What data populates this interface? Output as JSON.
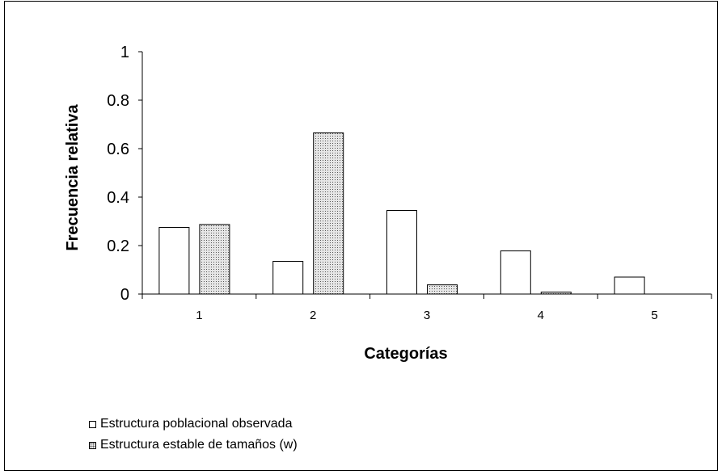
{
  "chart_data": {
    "type": "bar",
    "categories": [
      "1",
      "2",
      "3",
      "4",
      "5"
    ],
    "series": [
      {
        "name": "Estructura poblacional observada",
        "values": [
          0.275,
          0.135,
          0.345,
          0.178,
          0.07
        ],
        "fill": "#ffffff"
      },
      {
        "name": "Estructura estable de tamaños (w)",
        "values": [
          0.287,
          0.665,
          0.038,
          0.008,
          0
        ],
        "fill": "#d9d9d9"
      }
    ],
    "xlabel": "Categorías",
    "ylabel": "Frecuencia relativa",
    "ylim": [
      0,
      1
    ],
    "yticks": [
      "0",
      "0.2",
      "0.4",
      "0.6",
      "0.8",
      "1"
    ],
    "legend_position": "bottom-left"
  }
}
